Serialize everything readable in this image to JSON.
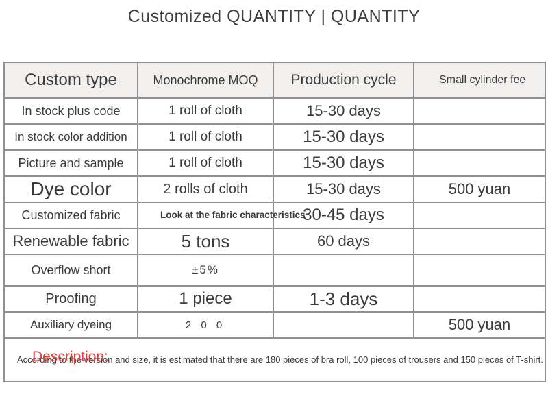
{
  "title": "Customized QUANTITY | QUANTITY",
  "colors": {
    "accent_red": "#e23b3b",
    "header_bg": "#f1f0ee",
    "border_gray": "#909090",
    "text": "#3b3b3b"
  },
  "table": {
    "headers": [
      "Custom type",
      "Monochrome MOQ",
      "Production cycle",
      "Small cylinder fee"
    ],
    "rows": [
      {
        "type": "In stock plus code",
        "moq": "1 roll of cloth",
        "cycle": "15-30 days",
        "fee": ""
      },
      {
        "type": "In stock color addition",
        "moq": "1 roll of cloth",
        "cycle": "15-30 days",
        "fee": ""
      },
      {
        "type": "Picture and sample",
        "moq": "1 roll of cloth",
        "cycle": "15-30 days",
        "fee": ""
      },
      {
        "type": "Dye color",
        "moq": "2 rolls of cloth",
        "cycle": "15-30 days",
        "fee": "500 yuan"
      },
      {
        "type": "Customized fabric",
        "moq": "Look at the fabric characteristics",
        "cycle": "30-45 days",
        "fee": ""
      },
      {
        "type": "Renewable fabric",
        "moq": "5 tons",
        "cycle": "60 days",
        "fee": ""
      },
      {
        "type": "Overflow short",
        "moq": "±5%",
        "cycle": "",
        "fee": ""
      },
      {
        "type": "Proofing",
        "moq": "1 piece",
        "cycle": "1-3 days",
        "fee": ""
      },
      {
        "type": "Auxiliary dyeing",
        "moq": "2 0 0",
        "cycle": "",
        "fee": "500 yuan"
      }
    ],
    "description": {
      "label": "Description:",
      "text": "According to the version and size, it is estimated that there are 180 pieces of bra roll, 100 pieces of trousers and 150 pieces of T-shirt."
    }
  }
}
